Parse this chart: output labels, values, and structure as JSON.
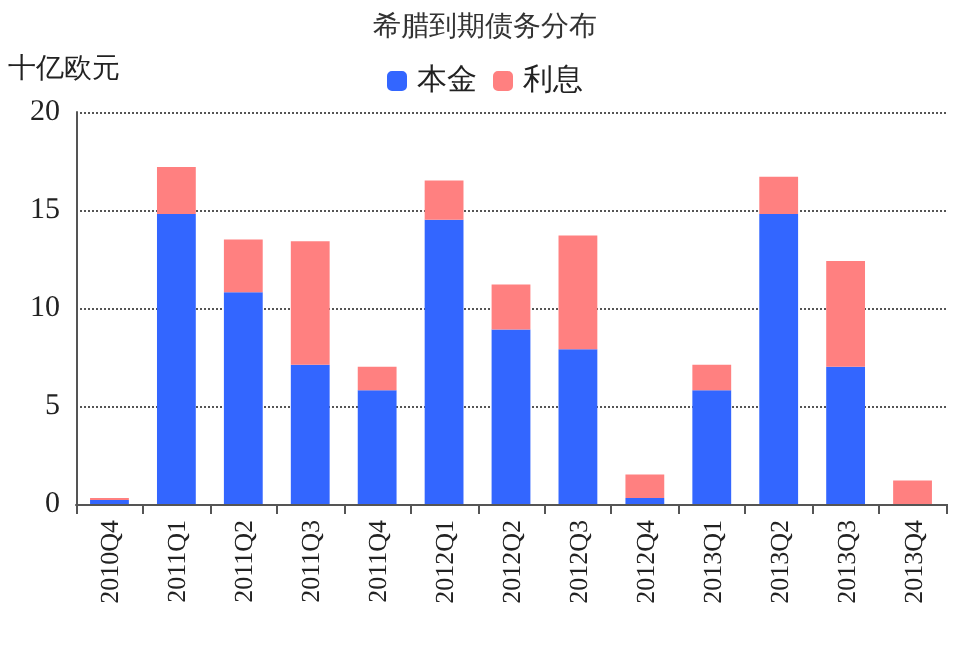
{
  "chart_data": {
    "type": "bar",
    "title": "希腊到期债务分布",
    "ylabel": "十亿欧元",
    "stacked": true,
    "categories": [
      "2010Q4",
      "2011Q1",
      "2011Q2",
      "2011Q3",
      "2011Q4",
      "2012Q1",
      "2012Q2",
      "2012Q3",
      "2012Q4",
      "2013Q1",
      "2013Q2",
      "2013Q3",
      "2013Q4"
    ],
    "series": [
      {
        "name": "本金",
        "color": "#3366ff",
        "values": [
          0.2,
          14.8,
          10.8,
          7.1,
          5.8,
          14.5,
          8.9,
          7.9,
          0.3,
          5.8,
          14.8,
          7.0,
          0
        ]
      },
      {
        "name": "利息",
        "color": "#ff8080",
        "values": [
          0.1,
          2.4,
          2.7,
          6.3,
          1.2,
          2.0,
          2.3,
          5.8,
          1.2,
          1.3,
          1.9,
          5.4,
          1.2
        ]
      }
    ],
    "ylim": [
      0,
      20
    ],
    "yticks": [
      0,
      5,
      10,
      15,
      20
    ],
    "grid": "y",
    "legend": "top"
  }
}
